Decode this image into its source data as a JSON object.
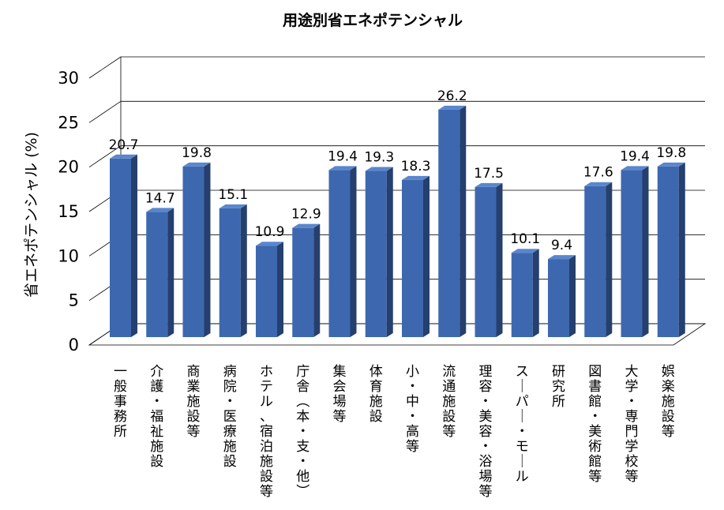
{
  "chart_data": {
    "type": "bar",
    "title": "用途別省エネポテンシャル",
    "xlabel": "",
    "ylabel": "省エネポテンシャル (%)",
    "ylim": [
      0,
      30
    ],
    "yticks": [
      "0",
      "5",
      "10",
      "15",
      "20",
      "25",
      "30"
    ],
    "categories": [
      "一般事務所",
      "介護・福祉施設",
      "商業施設等",
      "病院・医療施設",
      "ホテル、宿泊施設等",
      "庁舎(本・支・他)",
      "集会場等",
      "体育施設",
      "小・中・高等",
      "流通施設等",
      "理容・美容・浴場等",
      "スーパー・モール",
      "研究所",
      "図書館・美術館等",
      "大学・専門学校等",
      "娯楽施設等"
    ],
    "values": [
      20.7,
      14.7,
      19.8,
      15.1,
      10.9,
      12.9,
      19.4,
      19.3,
      18.3,
      26.2,
      17.5,
      10.1,
      9.4,
      17.6,
      19.4,
      19.8
    ],
    "labels": [
      "20.7",
      "14.7",
      "19.8",
      "15.1",
      "10.9",
      "12.9",
      "19.4",
      "19.3",
      "18.3",
      "26.2",
      "17.5",
      "10.1",
      "9.4",
      "17.6",
      "19.4",
      "19.8"
    ],
    "grid": true,
    "legend": "none",
    "colors": {
      "bar_front": "#3d68b0",
      "bar_side": "#253f6e",
      "bar_top": "#5a86cc",
      "grid": "#000000"
    }
  }
}
